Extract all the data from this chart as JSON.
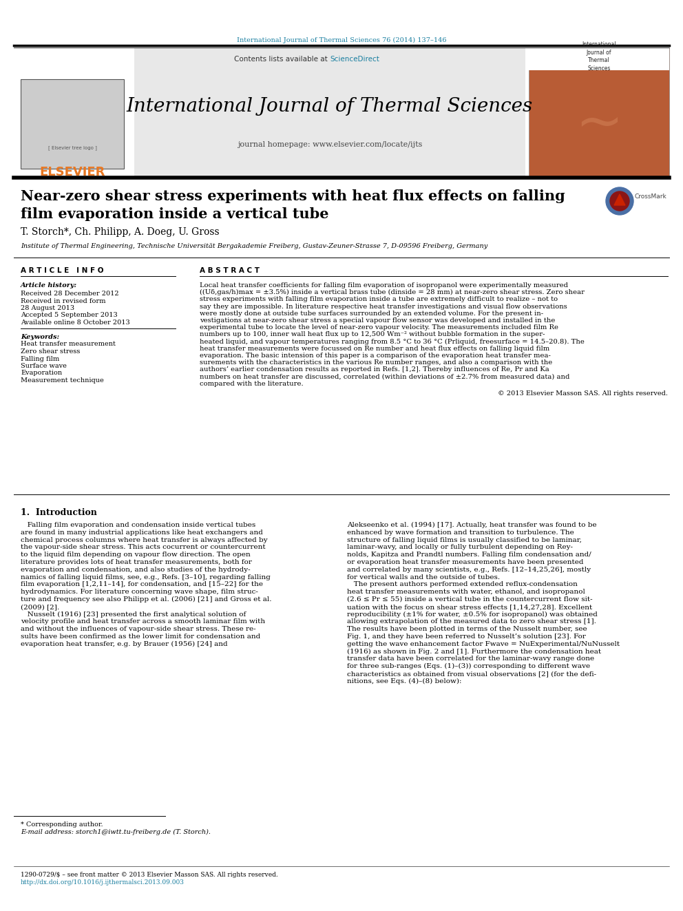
{
  "page_bg": "#ffffff",
  "top_journal_text": "International Journal of Thermal Sciences 76 (2014) 137–146",
  "top_journal_color": "#1a7fa0",
  "header_bg": "#e8e8e8",
  "header_sciencedirect_color": "#1a7fa0",
  "header_journal_title": "International Journal of Thermal Sciences",
  "header_homepage_text": "journal homepage: www.elsevier.com/locate/ijts",
  "elsevier_color": "#e87722",
  "paper_title_line1": "Near-zero shear stress experiments with heat flux effects on falling",
  "paper_title_line2": "film evaporation inside a vertical tube",
  "authors": "T. Storch*, Ch. Philipp, A. Doeg, U. Gross",
  "affiliation": "Institute of Thermal Engineering, Technische Universität Bergakademie Freiberg, Gustav-Zeuner-Strasse 7, D-09596 Freiberg, Germany",
  "article_info_label": "A R T I C L E   I N F O",
  "abstract_label": "A B S T R A C T",
  "article_history_label": "Article history:",
  "history_lines": [
    "Received 28 December 2012",
    "Received in revised form",
    "28 August 2013",
    "Accepted 5 September 2013",
    "Available online 8 October 2013"
  ],
  "keywords_label": "Keywords:",
  "keywords": [
    "Heat transfer measurement",
    "Zero shear stress",
    "Falling film",
    "Surface wave",
    "Evaporation",
    "Measurement technique"
  ],
  "abstract_lines": [
    "Local heat transfer coefficients for falling film evaporation of isopropanol were experimentally measured",
    "((Uδ,gas/h)max = ±3.5%) inside a vertical brass tube (dinside = 28 mm) at near-zero shear stress. Zero shear",
    "stress experiments with falling film evaporation inside a tube are extremely difficult to realize – not to",
    "say they are impossible. In literature respective heat transfer investigations and visual flow observations",
    "were mostly done at outside tube surfaces surrounded by an extended volume. For the present in-",
    "vestigations at near-zero shear stress a special vapour flow sensor was developed and installed in the",
    "experimental tube to locate the level of near-zero vapour velocity. The measurements included film Re",
    "numbers up to 100, inner wall heat flux up to 12,500 Wm⁻² without bubble formation in the super-",
    "heated liquid, and vapour temperatures ranging from 8.5 °C to 36 °C (Prliquid, freesurface = 14.5–20.8). The",
    "heat transfer measurements were focussed on Re number and heat flux effects on falling liquid film",
    "evaporation. The basic intension of this paper is a comparison of the evaporation heat transfer mea-",
    "surements with the characteristics in the various Re number ranges, and also a comparison with the",
    "authors’ earlier condensation results as reported in Refs. [1,2]. Thereby influences of Re, Pr and Ka",
    "numbers on heat transfer are discussed, correlated (within deviations of ±2.7% from measured data) and",
    "compared with the literature."
  ],
  "copyright_text": "© 2013 Elsevier Masson SAS. All rights reserved.",
  "intro_heading": "1.  Introduction",
  "intro_col1_lines": [
    "   Falling film evaporation and condensation inside vertical tubes",
    "are found in many industrial applications like heat exchangers and",
    "chemical process columns where heat transfer is always affected by",
    "the vapour-side shear stress. This acts cocurrent or countercurrent",
    "to the liquid film depending on vapour flow direction. The open",
    "literature provides lots of heat transfer measurements, both for",
    "evaporation and condensation, and also studies of the hydrody-",
    "namics of falling liquid films, see, e.g., Refs. [3–10], regarding falling",
    "film evaporation [1,2,11–14], for condensation, and [15–22] for the",
    "hydrodynamics. For literature concerning wave shape, film struc-",
    "ture and frequency see also Philipp et al. (2006) [21] and Gross et al.",
    "(2009) [2].",
    "   Nusselt (1916) [23] presented the first analytical solution of",
    "velocity profile and heat transfer across a smooth laminar film with",
    "and without the influences of vapour-side shear stress. These re-",
    "sults have been confirmed as the lower limit for condensation and",
    "evaporation heat transfer, e.g. by Brauer (1956) [24] and"
  ],
  "intro_col2_lines": [
    "Alekseenko et al. (1994) [17]. Actually, heat transfer was found to be",
    "enhanced by wave formation and transition to turbulence. The",
    "structure of falling liquid films is usually classified to be laminar,",
    "laminar-wavy, and locally or fully turbulent depending on Rey-",
    "nolds, Kapitza and Prandtl numbers. Falling film condensation and/",
    "or evaporation heat transfer measurements have been presented",
    "and correlated by many scientists, e.g., Refs. [12–14,25,26], mostly",
    "for vertical walls and the outside of tubes.",
    "   The present authors performed extended reflux-condensation",
    "heat transfer measurements with water, ethanol, and isopropanol",
    "(2.6 ≤ Pr ≤ 55) inside a vertical tube in the countercurrent flow sit-",
    "uation with the focus on shear stress effects [1,14,27,28]. Excellent",
    "reproducibility (±1% for water, ±0.5% for isopropanol) was obtained",
    "allowing extrapolation of the measured data to zero shear stress [1].",
    "The results have been plotted in terms of the Nusselt number, see",
    "Fig. 1, and they have been referred to Nusselt’s solution [23]. For",
    "getting the wave enhancement factor Fwave = NuExperimental/NuNusselt",
    "(1916) as shown in Fig. 2 and [1]. Furthermore the condensation heat",
    "transfer data have been correlated for the laminar-wavy range done",
    "for three sub-ranges (Eqs. (1)–(3)) corresponding to different wave",
    "characteristics as obtained from visual observations [2] (for the defi-",
    "nitions, see Eqs. (4)–(8) below):"
  ],
  "footnote_star": "* Corresponding author.",
  "footnote_email": "E-mail address: storch1@iwtt.tu-freiberg.de (T. Storch).",
  "footer_issn": "1290-0729/$ – see front matter © 2013 Elsevier Masson SAS. All rights reserved.",
  "footer_doi": "http://dx.doi.org/10.1016/j.ijthermalsci.2013.09.003",
  "link_color": "#1a7fa0"
}
